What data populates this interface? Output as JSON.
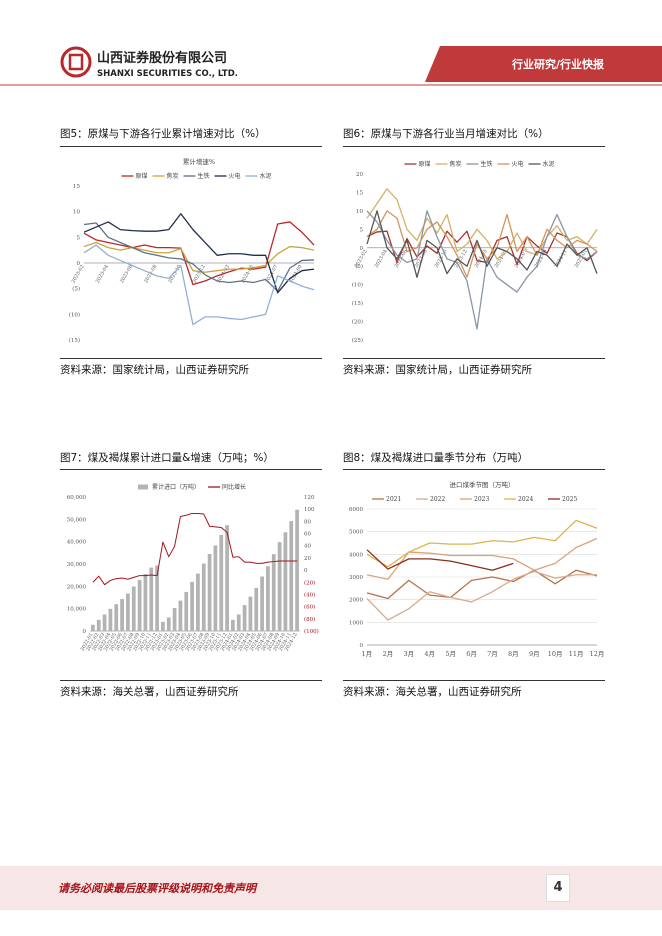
{
  "header": {
    "company_cn": "山西证券股份有限公司",
    "company_en": "SHANXI SECURITIES CO., LTD.",
    "section": "行业研究/行业快报"
  },
  "figures": [
    {
      "caption": "图5：原煤与下游各行业累计增速对比（%）",
      "source": "资料来源：国家统计局，山西证券研究所"
    },
    {
      "caption": "图6：原煤与下游各行业当月增速对比（%）",
      "source": "资料来源：国家统计局，山西证券研究所"
    },
    {
      "caption": "图7：煤及褐煤累计进口量&增速（万吨；%）",
      "source": "资料来源：海关总署，山西证券研究所"
    },
    {
      "caption": "图8：煤及褐煤进口量季节分布（万吨）",
      "source": "资料来源：海关总署，山西证券研究所"
    }
  ],
  "chart_data": [
    {
      "type": "line",
      "title": "累计增速%",
      "legend": "top",
      "categories": [
        "2023-02",
        null,
        "2023-04",
        null,
        "2023-06",
        null,
        "2023-08",
        null,
        "2023-10",
        null,
        "2023-12",
        null,
        "2024-03",
        null,
        "2024-05",
        null,
        "2024-07",
        null,
        "2024-09",
        null
      ],
      "ylim": [
        -15,
        15
      ],
      "yticks": [
        {
          "value": -15,
          "label": "(15)"
        },
        {
          "value": -10,
          "label": "(10)"
        },
        {
          "value": -5,
          "label": "(5)"
        },
        0,
        5,
        10,
        15
      ],
      "series": [
        {
          "name": "原煤",
          "color": "#b8282a",
          "values": [
            5.8,
            4.5,
            4.0,
            3.5,
            3.0,
            3.5,
            3.0,
            3.0,
            2.9,
            -4.2,
            -3.5,
            -2.5,
            -1.7,
            -1.0,
            -1.2,
            -0.8,
            7.6,
            8.0,
            6.0,
            3.5
          ]
        },
        {
          "name": "焦炭",
          "color": "#c9a33a",
          "values": [
            3.2,
            4.0,
            3.0,
            2.5,
            3.0,
            2.5,
            2.0,
            2.0,
            2.8,
            -1.5,
            -1.8,
            -1.5,
            -1.2,
            -1.2,
            -0.9,
            -0.5,
            1.8,
            3.2,
            3.0,
            2.5
          ]
        },
        {
          "name": "生铁",
          "color": "#5d7189",
          "values": [
            7.5,
            7.8,
            5.0,
            4.0,
            3.0,
            2.0,
            1.5,
            1.0,
            0.8,
            -0.2,
            -2.3,
            -3.5,
            -3.8,
            -3.5,
            -3.8,
            -3.2,
            -5.5,
            -1.0,
            0.5,
            0.6
          ]
        },
        {
          "name": "火电",
          "color": "#1f2d4d",
          "values": [
            6.0,
            7.0,
            8.0,
            6.5,
            6.3,
            6.2,
            6.2,
            6.5,
            9.6,
            6.5,
            4.0,
            1.5,
            1.8,
            1.8,
            1.5,
            1.5,
            -5.8,
            -3.0,
            -1.5,
            -1.2
          ]
        },
        {
          "name": "水泥",
          "color": "#8fb0d8",
          "values": [
            2.0,
            3.5,
            1.5,
            0.5,
            -0.5,
            -1.5,
            -2.5,
            -3.0,
            -0.5,
            -12.0,
            -10.5,
            -10.5,
            -10.8,
            -11.0,
            -10.5,
            -10.0,
            -2.5,
            -3.5,
            -4.5,
            -5.2
          ]
        }
      ]
    },
    {
      "type": "line",
      "legend": "top",
      "categories": [
        "2023-02",
        null,
        "2023-04",
        null,
        "2023-06",
        null,
        "2023-08",
        null,
        "2023-10",
        null,
        "2023-12",
        null,
        "2024-03",
        null,
        "2024-05",
        null,
        "2024-07",
        null,
        "2024-09",
        null,
        "2024-11",
        null,
        "2025-01",
        null
      ],
      "ylim": [
        -25,
        20
      ],
      "yticks": [
        {
          "value": -25,
          "label": "(25)"
        },
        {
          "value": -20,
          "label": "(20)"
        },
        {
          "value": -15,
          "label": "(15)"
        },
        {
          "value": -10,
          "label": "(10)"
        },
        {
          "value": -5,
          "label": "(5)"
        },
        0,
        5,
        10,
        15,
        20
      ],
      "series": [
        {
          "name": "原煤",
          "color": "#a83232",
          "values": [
            3,
            4.3,
            4.5,
            -4,
            2.5,
            -2.5,
            0.5,
            -1.5,
            4.5,
            1.5,
            4.5,
            -3.5,
            -4,
            2,
            3,
            -4.5,
            3,
            0.5,
            -1.5,
            4,
            3,
            -1.5,
            -3.5,
            -1
          ]
        },
        {
          "name": "焦炭",
          "color": "#d4b06a",
          "values": [
            8,
            12,
            16,
            13,
            5,
            2,
            8,
            4,
            9,
            -1,
            1,
            5,
            2,
            -3,
            -1,
            4,
            -1,
            -2,
            3,
            6,
            2,
            3,
            1,
            5
          ]
        },
        {
          "name": "生铁",
          "color": "#8a96a6",
          "values": [
            10,
            7,
            2,
            -2,
            -4,
            -3,
            10,
            3,
            -3,
            -4,
            -9,
            -22,
            -3,
            -8,
            -10,
            -12,
            -8,
            -5,
            3,
            9,
            3,
            -2,
            -3,
            -1
          ]
        },
        {
          "name": "火电",
          "color": "#d2945a",
          "values": [
            3,
            5,
            10,
            8,
            -1,
            0,
            5,
            7,
            3,
            -2,
            -8,
            1,
            -3,
            0,
            9,
            -1,
            3,
            -2,
            5,
            2,
            0,
            2,
            1,
            -1
          ]
        },
        {
          "name": "水泥",
          "color": "#555555",
          "values": [
            1,
            10,
            0,
            -3,
            2,
            -8,
            2,
            0,
            -7,
            -3,
            -5,
            2,
            -5,
            0,
            -1,
            -3,
            -6,
            -1,
            -2,
            -5,
            1,
            -2,
            0,
            -7
          ]
        }
      ]
    },
    {
      "type": "combo",
      "legend": "top",
      "categories": [
        "2022-01",
        "2022-02",
        "2022-03",
        "2022-04",
        "2022-05",
        "2022-06",
        "2022-07",
        "2022-08",
        "2022-09",
        "2022-10",
        "2022-11",
        "2022-12",
        "2023-01",
        "2023-02",
        "2023-03",
        "2023-04",
        "2023-05",
        "2023-06",
        "2023-07",
        "2023-08",
        "2023-09",
        "2023-10",
        "2023-11",
        "2023-12",
        "2024-01",
        "2024-02",
        "2024-03",
        "2024-04",
        "2024-05",
        "2024-06",
        "2024-07",
        "2024-08",
        "2024-09",
        "2024-10",
        "2024-11",
        "2024-12"
      ],
      "ylim": [
        0,
        60000
      ],
      "yticks": [
        0,
        {
          "value": 10000,
          "label": "10,000"
        },
        {
          "value": 20000,
          "label": "20,000"
        },
        {
          "value": 30000,
          "label": "30,000"
        },
        {
          "value": 40000,
          "label": "40,000"
        },
        {
          "value": 50000,
          "label": "50,000"
        },
        {
          "value": 60000,
          "label": "60,000"
        }
      ],
      "y2lim": [
        -100,
        120
      ],
      "y2ticks": [
        {
          "value": -100,
          "label": "(100)"
        },
        {
          "value": -80,
          "label": "(80)"
        },
        {
          "value": -60,
          "label": "(60)"
        },
        {
          "value": -40,
          "label": "(40)"
        },
        {
          "value": -20,
          "label": "(20)"
        },
        0,
        20,
        40,
        60,
        80,
        100,
        120
      ],
      "series": [
        {
          "name": "累计进口（万吨）",
          "type": "bar",
          "color": "#b3b3b3",
          "values": [
            2800,
            5000,
            7400,
            9900,
            12000,
            14300,
            16800,
            19900,
            22900,
            25500,
            28400,
            29300,
            4100,
            6100,
            10300,
            13600,
            17500,
            22000,
            25700,
            30200,
            34500,
            38300,
            43000,
            47400,
            5000,
            7400,
            11600,
            15400,
            19300,
            24400,
            29000,
            34400,
            39800,
            44200,
            49200,
            54300
          ]
        },
        {
          "name": "同比增长",
          "type": "line",
          "axis": "y2",
          "color": "#a5151b",
          "values": [
            -20,
            -10,
            -24,
            -17,
            -14,
            -13,
            -15,
            -12,
            -9,
            -9,
            -8,
            -9,
            46,
            22,
            39,
            88,
            90,
            93,
            93,
            92,
            72,
            71,
            70,
            62,
            21,
            22,
            13,
            13,
            11,
            11,
            13,
            14,
            15,
            15,
            15,
            15
          ]
        }
      ]
    },
    {
      "type": "line",
      "title": "进口煤季节图（万吨）",
      "legend": "top",
      "categories": [
        "1月",
        "2月",
        "3月",
        "4月",
        "5月",
        "6月",
        "7月",
        "8月",
        "9月",
        "10月",
        "11月",
        "12月"
      ],
      "ylim": [
        0,
        6000
      ],
      "yticks": [
        0,
        1000,
        2000,
        3000,
        4000,
        5000,
        6000
      ],
      "grid": true,
      "series": [
        {
          "name": "2021",
          "color": "#b5734a",
          "values": [
            2300,
            2050,
            2850,
            2200,
            2100,
            2850,
            3000,
            2800,
            3300,
            2700,
            3300,
            3050
          ]
        },
        {
          "name": "2022",
          "color": "#d9a98a",
          "values": [
            2050,
            1100,
            1600,
            2350,
            2100,
            1900,
            2350,
            2900,
            3250,
            2950,
            3100,
            3100
          ]
        },
        {
          "name": "2023",
          "color": "#dca27a",
          "values": [
            3100,
            2900,
            4100,
            4050,
            3950,
            3950,
            3950,
            3800,
            3300,
            3600,
            4300,
            4700
          ]
        },
        {
          "name": "2024",
          "color": "#e0b24a",
          "values": [
            4000,
            3450,
            4100,
            4500,
            4450,
            4450,
            4600,
            4550,
            4750,
            4600,
            5500,
            5150
          ]
        },
        {
          "name": "2025",
          "color": "#8b2e1a",
          "values": [
            4200,
            3350,
            3800,
            3800,
            3700,
            3500,
            3300,
            3600,
            null,
            null,
            null,
            null
          ]
        }
      ]
    }
  ],
  "footer": {
    "disclaimer": "请务必阅读最后股票评级说明和免责声明",
    "page": "4"
  }
}
